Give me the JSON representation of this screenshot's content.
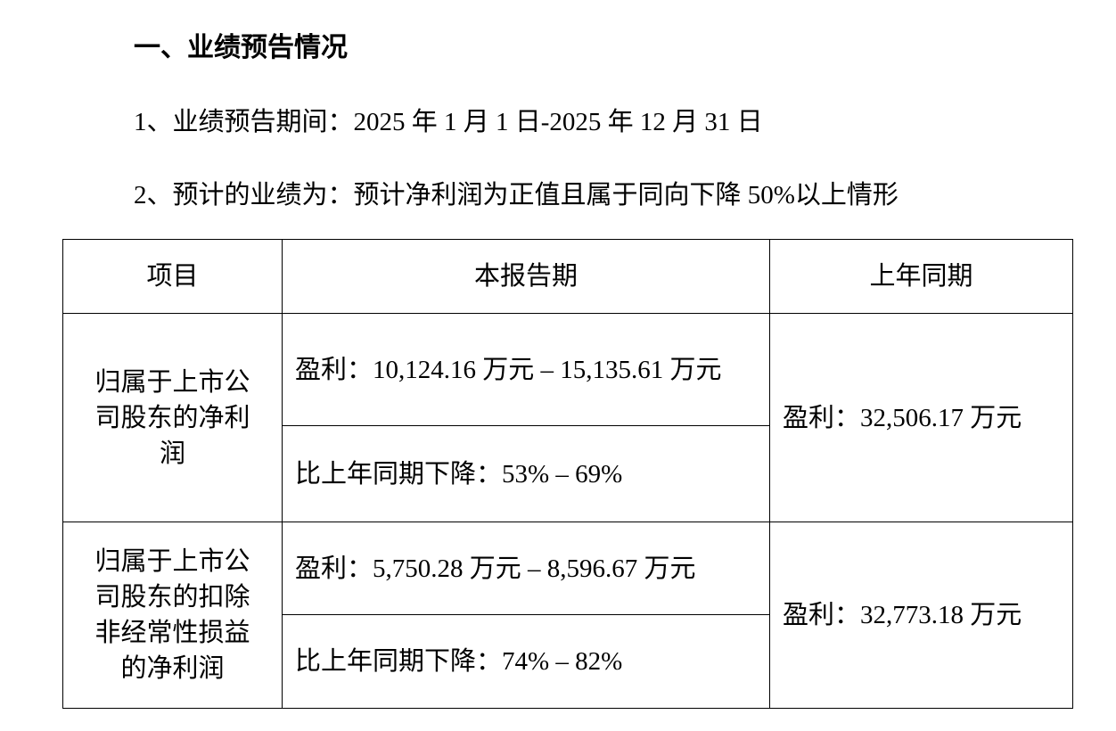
{
  "heading": "一、业绩预告情况",
  "period": "1、业绩预告期间：2025 年 1 月 1 日-2025 年 12 月 31 日",
  "forecast": "2、预计的业绩为：预计净利润为正值且属于同向下降 50%以上情形",
  "table": {
    "headers": [
      "项目",
      "本报告期",
      "上年同期"
    ],
    "rows": [
      {
        "item": "归属于上市公司股东的净利润",
        "current_profit": "盈利：10,124.16 万元 – 15,135.61 万元",
        "current_change": "比上年同期下降：53% – 69%",
        "prior": "盈利：32,506.17 万元"
      },
      {
        "item": "归属于上市公司股东的扣除非经常性损益的净利润",
        "current_profit": "盈利：5,750.28 万元 – 8,596.67 万元",
        "current_change": "比上年同期下降：74% – 82%",
        "prior": "盈利：32,773.18 万元"
      }
    ]
  }
}
